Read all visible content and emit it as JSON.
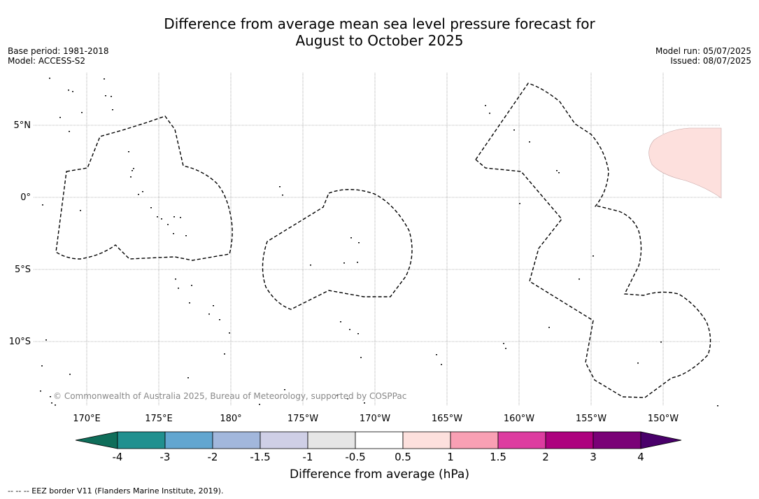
{
  "title_line1": "Difference from average mean sea level pressure forecast for",
  "title_line2": "August to October 2025",
  "meta_left": {
    "base_period": "Base period: 1981-2018",
    "model": "Model: ACCESS-S2"
  },
  "meta_right": {
    "model_run": "Model run: 05/07/2025",
    "issued": "Issued: 08/07/2025"
  },
  "lon_ticks": [
    "170°E",
    "175°E",
    "180°",
    "175°W",
    "170°W",
    "165°W",
    "160°W",
    "155°W",
    "150°W"
  ],
  "lat_ticks": [
    "5°N",
    "0°",
    "5°S",
    "10°S"
  ],
  "copyright": "© Commonwealth of Australia 2025, Bureau of Meteorology, supported by COSPPac",
  "colorbar": {
    "label": "Difference from average (hPa)",
    "tick_labels": [
      "-4",
      "-3",
      "-2",
      "-1.5",
      "-1",
      "-0.5",
      "0.5",
      "1",
      "1.5",
      "2",
      "3",
      "4"
    ],
    "colors": [
      "#0f6e5a",
      "#20908f",
      "#62a6d0",
      "#a2b7dc",
      "#cfcfe6",
      "#e6e6e6",
      "#ffffff",
      "#fde0dd",
      "#f9a0b4",
      "#dd3ca0",
      "#ad017e",
      "#7a0177",
      "#49006a"
    ]
  },
  "footer": "--  --  -- EEZ border V11 (Flanders Marine Institute, 2019)."
}
